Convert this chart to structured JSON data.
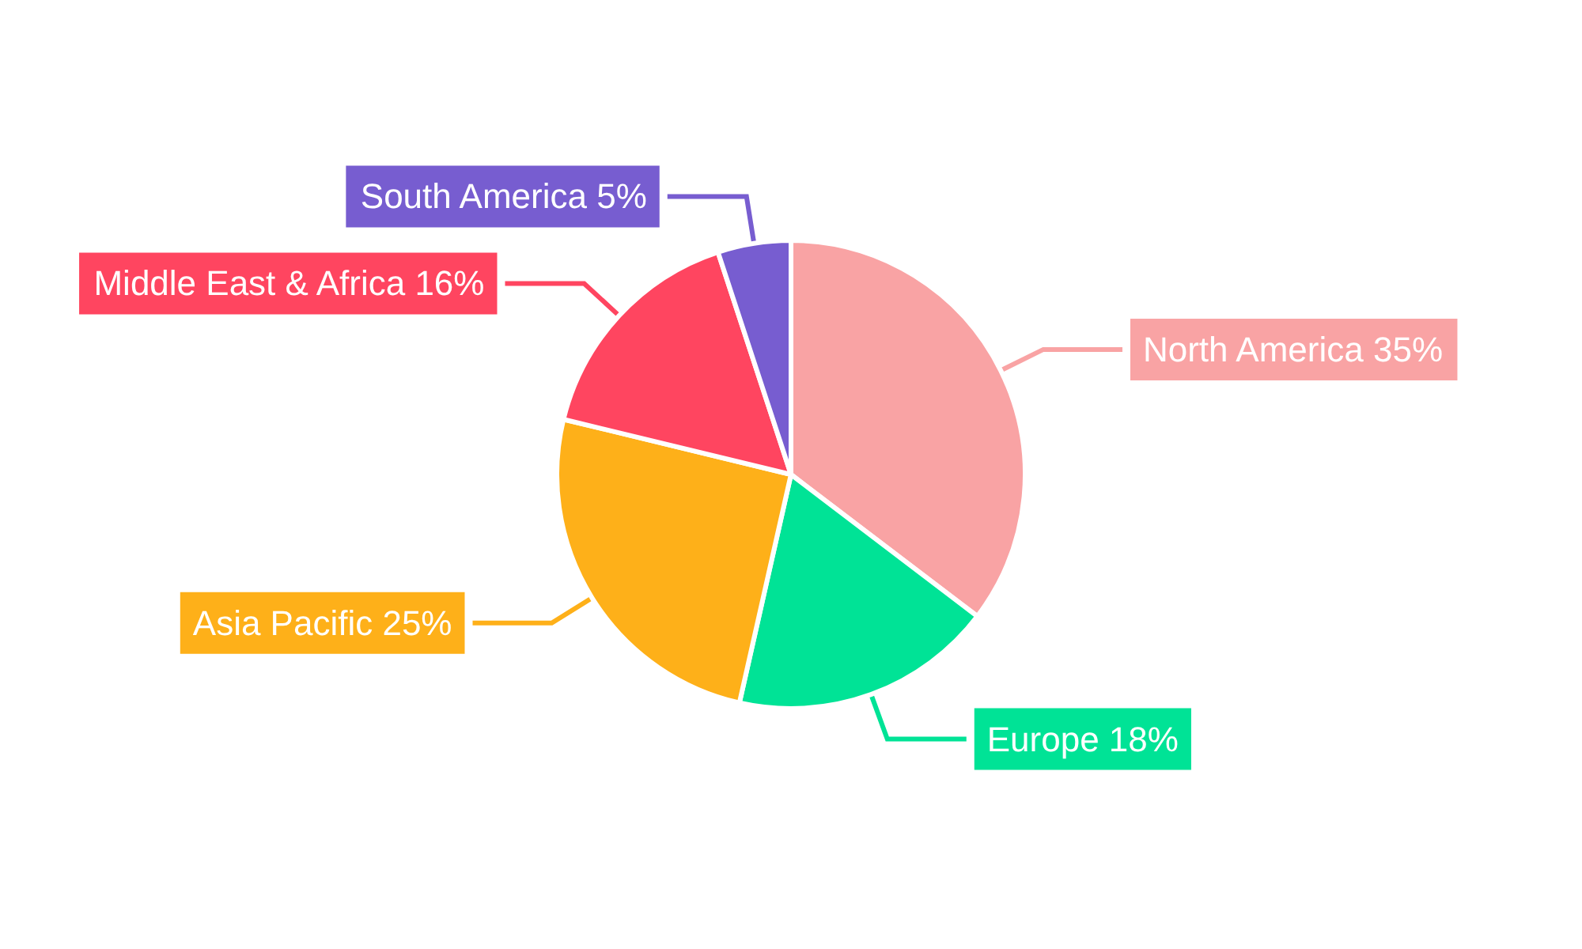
{
  "chart_data": {
    "type": "pie",
    "categories": [
      "North America",
      "Europe",
      "Asia Pacific",
      "Middle East & Africa",
      "South America"
    ],
    "values": [
      35,
      18,
      25,
      16,
      5
    ],
    "value_labels": [
      "35%",
      "18%",
      "25%",
      "16%",
      "5%"
    ],
    "colors": [
      "#f9a3a4",
      "#00e396",
      "#feb019",
      "#ff4560",
      "#775dd0"
    ],
    "legend": false
  }
}
